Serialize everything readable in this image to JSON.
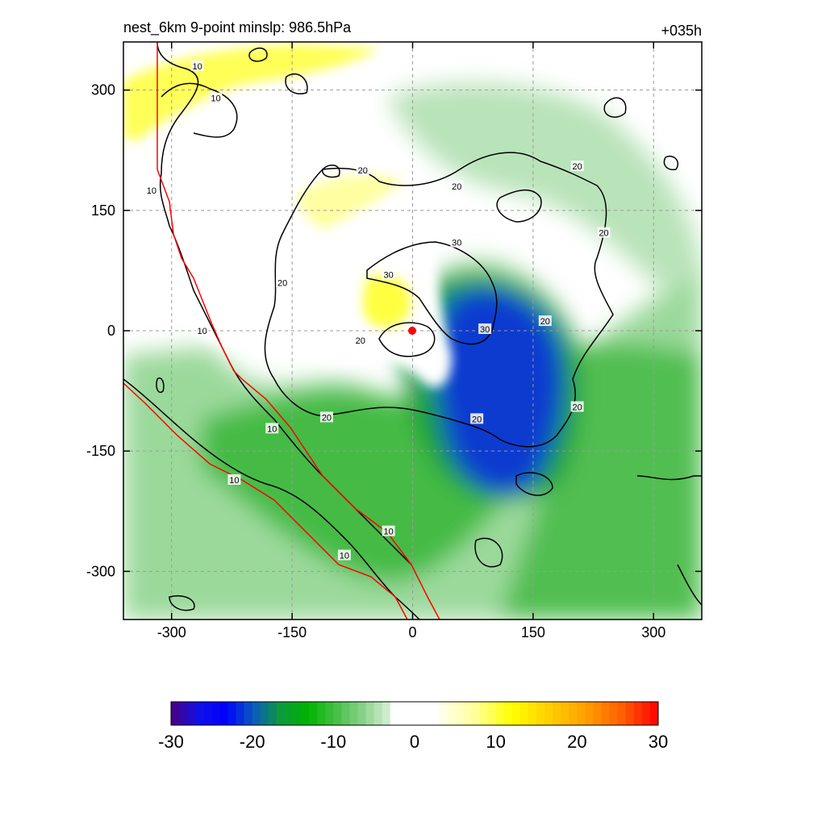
{
  "title_left": "nest_6km  9-point minslp: 986.5hPa",
  "title_right": "+035h",
  "chart_data": {
    "type": "heatmap",
    "title": "nest_6km  9-point minslp: 986.5hPa",
    "forecast_hour": "+035h",
    "min_slp": "986.5hPa",
    "xlim": [
      -360,
      360
    ],
    "ylim": [
      -360,
      360
    ],
    "x_ticks": [
      -300,
      -150,
      0,
      150,
      300
    ],
    "y_ticks": [
      300,
      150,
      0,
      -150,
      -300
    ],
    "grid": true,
    "shading": {
      "range": [
        -30,
        30
      ],
      "colorbar_ticks": [
        -30,
        -20,
        -10,
        0,
        10,
        20,
        30
      ],
      "negative_colors": [
        "#4b0082",
        "#1010e8",
        "#0000ff",
        "#0a5ac0",
        "#0d9a3a",
        "#00b400",
        "#44c044",
        "#8ad28a",
        "#d8f0d8"
      ],
      "positive_colors": [
        "#fffff0",
        "#ffff9a",
        "#ffff00",
        "#ffd000",
        "#ffa000",
        "#ff6000",
        "#ff0000"
      ],
      "features": [
        {
          "name": "negative core",
          "center": [
            130,
            -60
          ],
          "peak": -22
        },
        {
          "name": "negative band",
          "center": [
            -60,
            -220
          ],
          "peak": -10
        },
        {
          "name": "positive band north-west",
          "center": [
            -230,
            300
          ],
          "peak": 8
        },
        {
          "name": "positive band north",
          "center": [
            10,
            170
          ],
          "peak": 5
        },
        {
          "name": "positive patch near center",
          "center": [
            -20,
            30
          ],
          "peak": 7
        }
      ]
    },
    "contours": {
      "levels": [
        10,
        20,
        30
      ],
      "labels": [
        {
          "text": "10",
          "x": -268,
          "y": 330
        },
        {
          "text": "10",
          "x": -245,
          "y": 290
        },
        {
          "text": "10",
          "x": -325,
          "y": 175
        },
        {
          "text": "10",
          "x": -262,
          "y": 0
        },
        {
          "text": "10",
          "x": -175,
          "y": -122
        },
        {
          "text": "10",
          "x": -222,
          "y": -186
        },
        {
          "text": "10",
          "x": -30,
          "y": -250
        },
        {
          "text": "10",
          "x": -85,
          "y": -280
        },
        {
          "text": "20",
          "x": -62,
          "y": 200
        },
        {
          "text": "20",
          "x": 55,
          "y": 180
        },
        {
          "text": "20",
          "x": 205,
          "y": 205
        },
        {
          "text": "20",
          "x": 238,
          "y": 122
        },
        {
          "text": "20",
          "x": -162,
          "y": 60
        },
        {
          "text": "20",
          "x": -65,
          "y": -12
        },
        {
          "text": "20",
          "x": -107,
          "y": -108
        },
        {
          "text": "20",
          "x": 165,
          "y": 12
        },
        {
          "text": "20",
          "x": 205,
          "y": -95
        },
        {
          "text": "20",
          "x": 80,
          "y": -110
        },
        {
          "text": "30",
          "x": 55,
          "y": 110
        },
        {
          "text": "30",
          "x": -30,
          "y": 70
        },
        {
          "text": "30",
          "x": 90,
          "y": 2
        }
      ]
    },
    "storm_center": [
      -2,
      -2
    ]
  }
}
